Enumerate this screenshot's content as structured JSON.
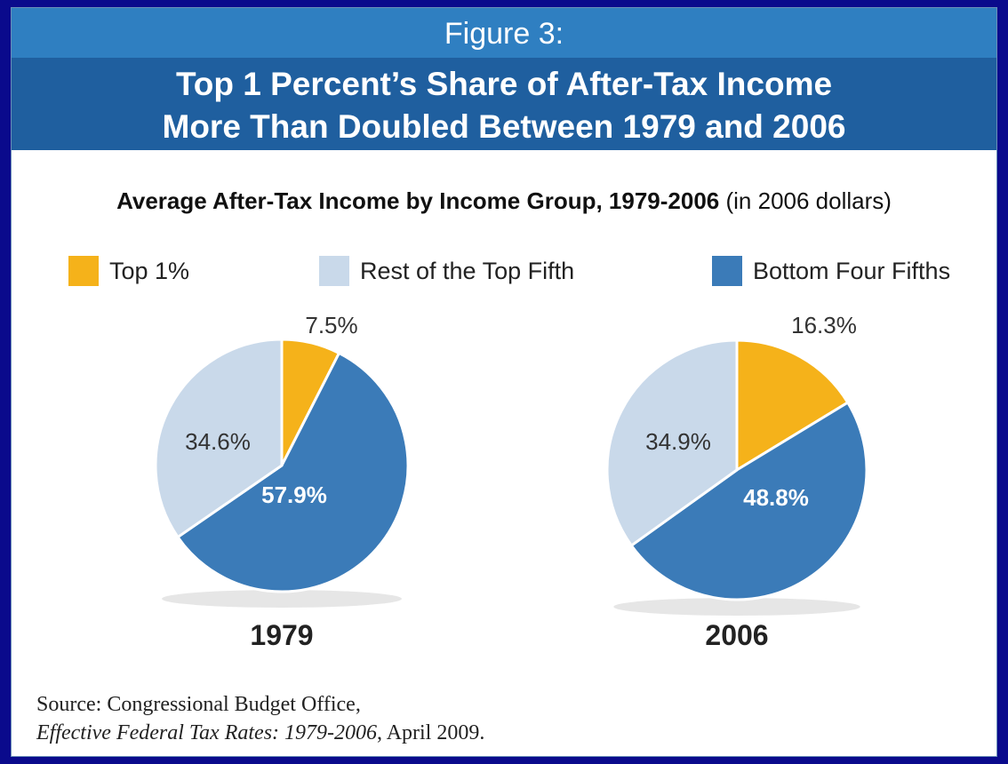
{
  "header": {
    "figure_label": "Figure 3:",
    "headline_line1": "Top 1 Percent’s Share of After-Tax Income",
    "headline_line2": "More Than Doubled Between 1979 and 2006"
  },
  "subtitle": {
    "bold": "Average After-Tax Income by Income Group, 1979-2006",
    "normal": "(in 2006 dollars)"
  },
  "legend": [
    {
      "label": "Top 1%",
      "color": "#f5b21a"
    },
    {
      "label": "Rest of the Top Fifth",
      "color": "#c9d9ea"
    },
    {
      "label": "Bottom Four Fifths",
      "color": "#3b7bb8"
    }
  ],
  "chart_data": [
    {
      "type": "pie",
      "title": "1979",
      "slices": [
        {
          "name": "Top 1%",
          "value": 7.5,
          "label": "7.5%",
          "color": "#f5b21a"
        },
        {
          "name": "Bottom Four Fifths",
          "value": 57.9,
          "label": "57.9%",
          "color": "#3b7bb8"
        },
        {
          "name": "Rest of the Top Fifth",
          "value": 34.6,
          "label": "34.6%",
          "color": "#c9d9ea"
        }
      ]
    },
    {
      "type": "pie",
      "title": "2006",
      "slices": [
        {
          "name": "Top 1%",
          "value": 16.3,
          "label": "16.3%",
          "color": "#f5b21a"
        },
        {
          "name": "Bottom Four Fifths",
          "value": 48.8,
          "label": "48.8%",
          "color": "#3b7bb8"
        },
        {
          "name": "Rest of the Top Fifth",
          "value": 34.9,
          "label": "34.9%",
          "color": "#c9d9ea"
        }
      ]
    }
  ],
  "source": {
    "line1": "Source: Congressional Budget Office,",
    "line2_italic": "Effective Federal Tax Rates:  1979-2006",
    "line2_rest": ", April 2009."
  }
}
